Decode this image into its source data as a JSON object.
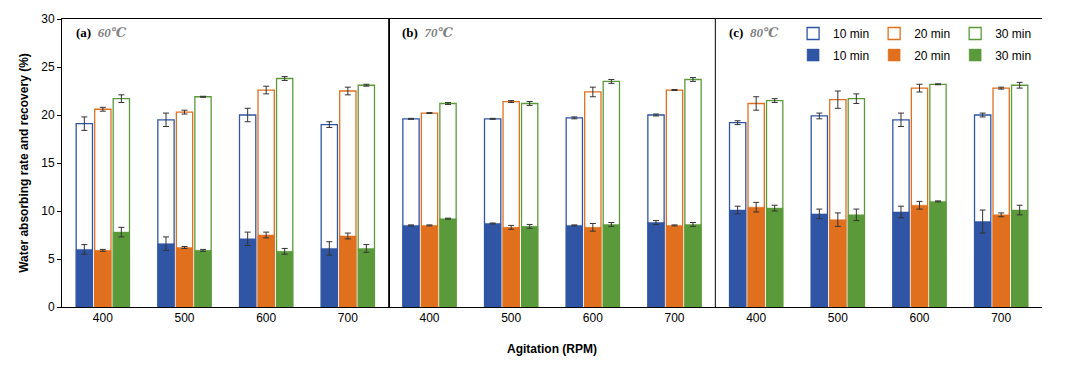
{
  "chart_data": {
    "type": "bar",
    "ylabel": "Water absorbing rate and recovery (%)",
    "xlabel": "Agitation (RPM)",
    "categories": [
      "400",
      "500",
      "600",
      "700"
    ],
    "ylim": [
      0,
      30
    ],
    "yticks": [
      0,
      5,
      10,
      15,
      20,
      25,
      30
    ],
    "grid": false,
    "legend": "upper right",
    "panels": [
      {
        "label": "(a)",
        "title": "60℃",
        "series": [
          {
            "name": "10 min",
            "color": "#2f55a4",
            "marker": "hollow",
            "values": [
              19.1,
              19.5,
              20.0,
              19.0
            ],
            "error": [
              0.7,
              0.7,
              0.7,
              0.3
            ]
          },
          {
            "name": "20 min",
            "color": "#e0701e",
            "marker": "hollow",
            "values": [
              20.6,
              20.3,
              22.6,
              22.5
            ],
            "error": [
              0.2,
              0.2,
              0.4,
              0.4
            ]
          },
          {
            "name": "30 min",
            "color": "#5b9a3a",
            "marker": "hollow",
            "values": [
              21.7,
              21.9,
              23.8,
              23.1
            ],
            "error": [
              0.4,
              0.05,
              0.2,
              0.1
            ]
          },
          {
            "name": "10 min",
            "color": "#2f55a4",
            "marker": "filled",
            "values": [
              6.0,
              6.6,
              7.1,
              6.1
            ],
            "error": [
              0.5,
              0.7,
              0.7,
              0.7
            ]
          },
          {
            "name": "20 min",
            "color": "#e0701e",
            "marker": "filled",
            "values": [
              5.9,
              6.2,
              7.5,
              7.4
            ],
            "error": [
              0.1,
              0.1,
              0.3,
              0.3
            ]
          },
          {
            "name": "30 min",
            "color": "#5b9a3a",
            "marker": "filled",
            "values": [
              7.8,
              5.9,
              5.8,
              6.1
            ],
            "error": [
              0.5,
              0.1,
              0.3,
              0.4
            ]
          }
        ]
      },
      {
        "label": "(b)",
        "title": "70℃",
        "series": [
          {
            "name": "10 min",
            "color": "#2f55a4",
            "marker": "hollow",
            "values": [
              19.6,
              19.6,
              19.7,
              20.0
            ],
            "error": [
              0.05,
              0.05,
              0.1,
              0.1
            ]
          },
          {
            "name": "20 min",
            "color": "#e0701e",
            "marker": "hollow",
            "values": [
              20.2,
              21.4,
              22.4,
              22.6
            ],
            "error": [
              0.05,
              0.1,
              0.5,
              0.05
            ]
          },
          {
            "name": "30 min",
            "color": "#5b9a3a",
            "marker": "hollow",
            "values": [
              21.2,
              21.2,
              23.5,
              23.7
            ],
            "error": [
              0.1,
              0.2,
              0.2,
              0.2
            ]
          },
          {
            "name": "10 min",
            "color": "#2f55a4",
            "marker": "filled",
            "values": [
              8.5,
              8.7,
              8.5,
              8.8
            ],
            "error": [
              0.05,
              0.05,
              0.05,
              0.2
            ]
          },
          {
            "name": "20 min",
            "color": "#e0701e",
            "marker": "filled",
            "values": [
              8.5,
              8.3,
              8.3,
              8.5
            ],
            "error": [
              0.05,
              0.2,
              0.4,
              0.05
            ]
          },
          {
            "name": "30 min",
            "color": "#5b9a3a",
            "marker": "filled",
            "values": [
              9.2,
              8.4,
              8.6,
              8.6
            ],
            "error": [
              0.05,
              0.2,
              0.2,
              0.2
            ]
          }
        ]
      },
      {
        "label": "(c)",
        "title": "80℃",
        "series": [
          {
            "name": "10 min",
            "color": "#2f55a4",
            "marker": "hollow",
            "values": [
              19.2,
              19.9,
              19.5,
              20.0
            ],
            "error": [
              0.2,
              0.3,
              0.7,
              0.2
            ]
          },
          {
            "name": "20 min",
            "color": "#e0701e",
            "marker": "hollow",
            "values": [
              21.2,
              21.6,
              22.8,
              22.8
            ],
            "error": [
              0.7,
              0.9,
              0.4,
              0.1
            ]
          },
          {
            "name": "30 min",
            "color": "#5b9a3a",
            "marker": "hollow",
            "values": [
              21.5,
              21.7,
              23.2,
              23.1
            ],
            "error": [
              0.2,
              0.5,
              0.05,
              0.3
            ]
          },
          {
            "name": "10 min",
            "color": "#2f55a4",
            "marker": "filled",
            "values": [
              10.1,
              9.7,
              9.9,
              8.9
            ],
            "error": [
              0.4,
              0.5,
              0.6,
              1.2
            ]
          },
          {
            "name": "20 min",
            "color": "#e0701e",
            "marker": "filled",
            "values": [
              10.4,
              9.1,
              10.6,
              9.6
            ],
            "error": [
              0.5,
              0.7,
              0.4,
              0.2
            ]
          },
          {
            "name": "30 min",
            "color": "#5b9a3a",
            "marker": "filled",
            "values": [
              10.3,
              9.6,
              11.0,
              10.1
            ],
            "error": [
              0.3,
              0.6,
              0.05,
              0.5
            ]
          }
        ]
      }
    ]
  }
}
